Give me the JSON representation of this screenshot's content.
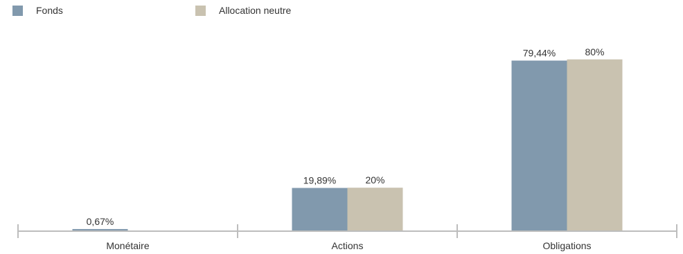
{
  "chart_data": {
    "type": "bar",
    "categories": [
      "Monétaire",
      "Actions",
      "Obligations"
    ],
    "series": [
      {
        "name": "Fonds",
        "values": [
          0.67,
          19.89,
          79.44
        ],
        "labels": [
          "0,67%",
          "19,89%",
          "79,44%"
        ],
        "color": "#8199ad"
      },
      {
        "name": "Allocation neutre",
        "values": [
          0,
          20,
          80
        ],
        "labels": [
          "",
          "20%",
          "80%"
        ],
        "color": "#c9c2b0"
      }
    ],
    "ylim": [
      0,
      100
    ],
    "legend": "top-left",
    "grid": false
  },
  "colors": {
    "axis": "#bdbdbd",
    "text": "#333333"
  }
}
